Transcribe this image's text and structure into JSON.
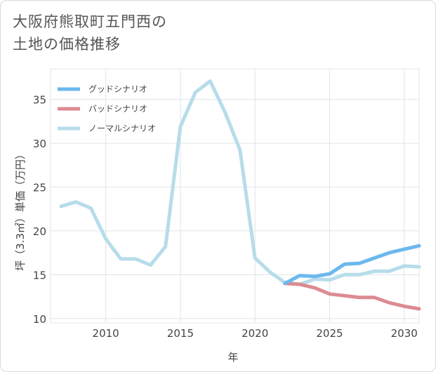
{
  "title": {
    "line1": "大阪府熊取町五門西の",
    "line2": "土地の価格推移"
  },
  "chart_data": {
    "type": "line",
    "xlabel": "年",
    "ylabel": "坪（3.3㎡）単価（万円）",
    "xlim": [
      2006.3,
      2031.0
    ],
    "ylim": [
      9.5,
      38.5
    ],
    "xticks": [
      2010,
      2015,
      2020,
      2025,
      2030
    ],
    "yticks": [
      10,
      15,
      20,
      25,
      30,
      35
    ],
    "grid": true,
    "legend_position": "top-left",
    "series": [
      {
        "name": "グッドシナリオ",
        "color": "#6cb8ee",
        "x": [
          2022,
          2023,
          2024,
          2025,
          2026,
          2027,
          2028,
          2029,
          2030,
          2031
        ],
        "y": [
          14.0,
          14.9,
          14.8,
          15.1,
          16.2,
          16.3,
          16.9,
          17.5,
          17.9,
          18.3
        ]
      },
      {
        "name": "バッドシナリオ",
        "color": "#dc8b91",
        "x": [
          2022,
          2023,
          2024,
          2025,
          2026,
          2027,
          2028,
          2029,
          2030,
          2031
        ],
        "y": [
          14.0,
          13.9,
          13.5,
          12.8,
          12.6,
          12.4,
          12.4,
          11.8,
          11.4,
          11.1
        ]
      },
      {
        "name": "ノーマルシナリオ",
        "color": "#b7dcea",
        "x": [
          2007,
          2008,
          2009,
          2010,
          2011,
          2012,
          2013,
          2014,
          2015,
          2016,
          2017,
          2018,
          2019,
          2020,
          2021,
          2022,
          2023,
          2024,
          2025,
          2026,
          2027,
          2028,
          2029,
          2030,
          2031
        ],
        "y": [
          22.8,
          23.3,
          22.6,
          19.1,
          16.8,
          16.8,
          16.1,
          18.2,
          31.9,
          35.8,
          37.1,
          33.5,
          29.2,
          16.9,
          15.3,
          14.1,
          13.9,
          14.5,
          14.4,
          15.0,
          15.0,
          15.4,
          15.4,
          16.0,
          15.9
        ]
      }
    ]
  }
}
